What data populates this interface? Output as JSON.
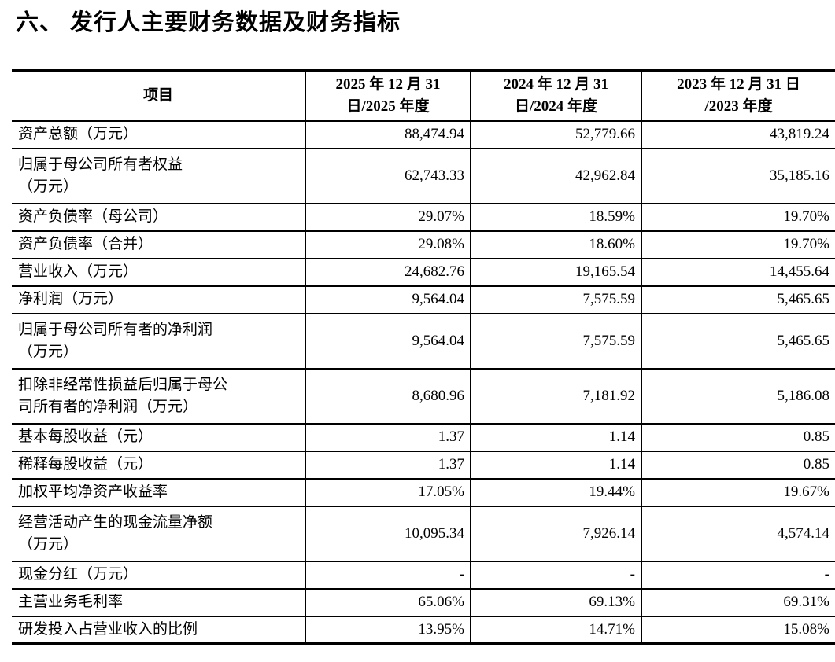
{
  "page_title": "六、 发行人主要财务数据及财务指标",
  "colors": {
    "text": "#000000",
    "border": "#000000",
    "background": "#ffffff"
  },
  "table": {
    "header": {
      "item_label": "项目",
      "periods": [
        "2025 年 12 月 31\n日/2025 年度",
        "2024 年 12 月 31\n日/2024 年度",
        "2023 年 12 月 31 日\n/2023 年度"
      ]
    },
    "rows": [
      {
        "label": "资产总额（万元）",
        "values": [
          "88,474.94",
          "52,779.66",
          "43,819.24"
        ]
      },
      {
        "label": "归属于母公司所有者权益\n（万元）",
        "values": [
          "62,743.33",
          "42,962.84",
          "35,185.16"
        ]
      },
      {
        "label": "资产负债率（母公司）",
        "values": [
          "29.07%",
          "18.59%",
          "19.70%"
        ]
      },
      {
        "label": "资产负债率（合并）",
        "values": [
          "29.08%",
          "18.60%",
          "19.70%"
        ]
      },
      {
        "label": "营业收入（万元）",
        "values": [
          "24,682.76",
          "19,165.54",
          "14,455.64"
        ]
      },
      {
        "label": "净利润（万元）",
        "values": [
          "9,564.04",
          "7,575.59",
          "5,465.65"
        ]
      },
      {
        "label": "归属于母公司所有者的净利润\n（万元）",
        "values": [
          "9,564.04",
          "7,575.59",
          "5,465.65"
        ]
      },
      {
        "label": "扣除非经常性损益后归属于母公\n司所有者的净利润（万元）",
        "values": [
          "8,680.96",
          "7,181.92",
          "5,186.08"
        ]
      },
      {
        "label": "基本每股收益（元）",
        "values": [
          "1.37",
          "1.14",
          "0.85"
        ]
      },
      {
        "label": "稀释每股收益（元）",
        "values": [
          "1.37",
          "1.14",
          "0.85"
        ]
      },
      {
        "label": "加权平均净资产收益率",
        "values": [
          "17.05%",
          "19.44%",
          "19.67%"
        ]
      },
      {
        "label": "经营活动产生的现金流量净额\n（万元）",
        "values": [
          "10,095.34",
          "7,926.14",
          "4,574.14"
        ]
      },
      {
        "label": "现金分红（万元）",
        "values": [
          "-",
          "-",
          "-"
        ]
      },
      {
        "label": "主营业务毛利率",
        "values": [
          "65.06%",
          "69.13%",
          "69.31%"
        ]
      },
      {
        "label": "研发投入占营业收入的比例",
        "values": [
          "13.95%",
          "14.71%",
          "15.08%"
        ]
      }
    ]
  }
}
